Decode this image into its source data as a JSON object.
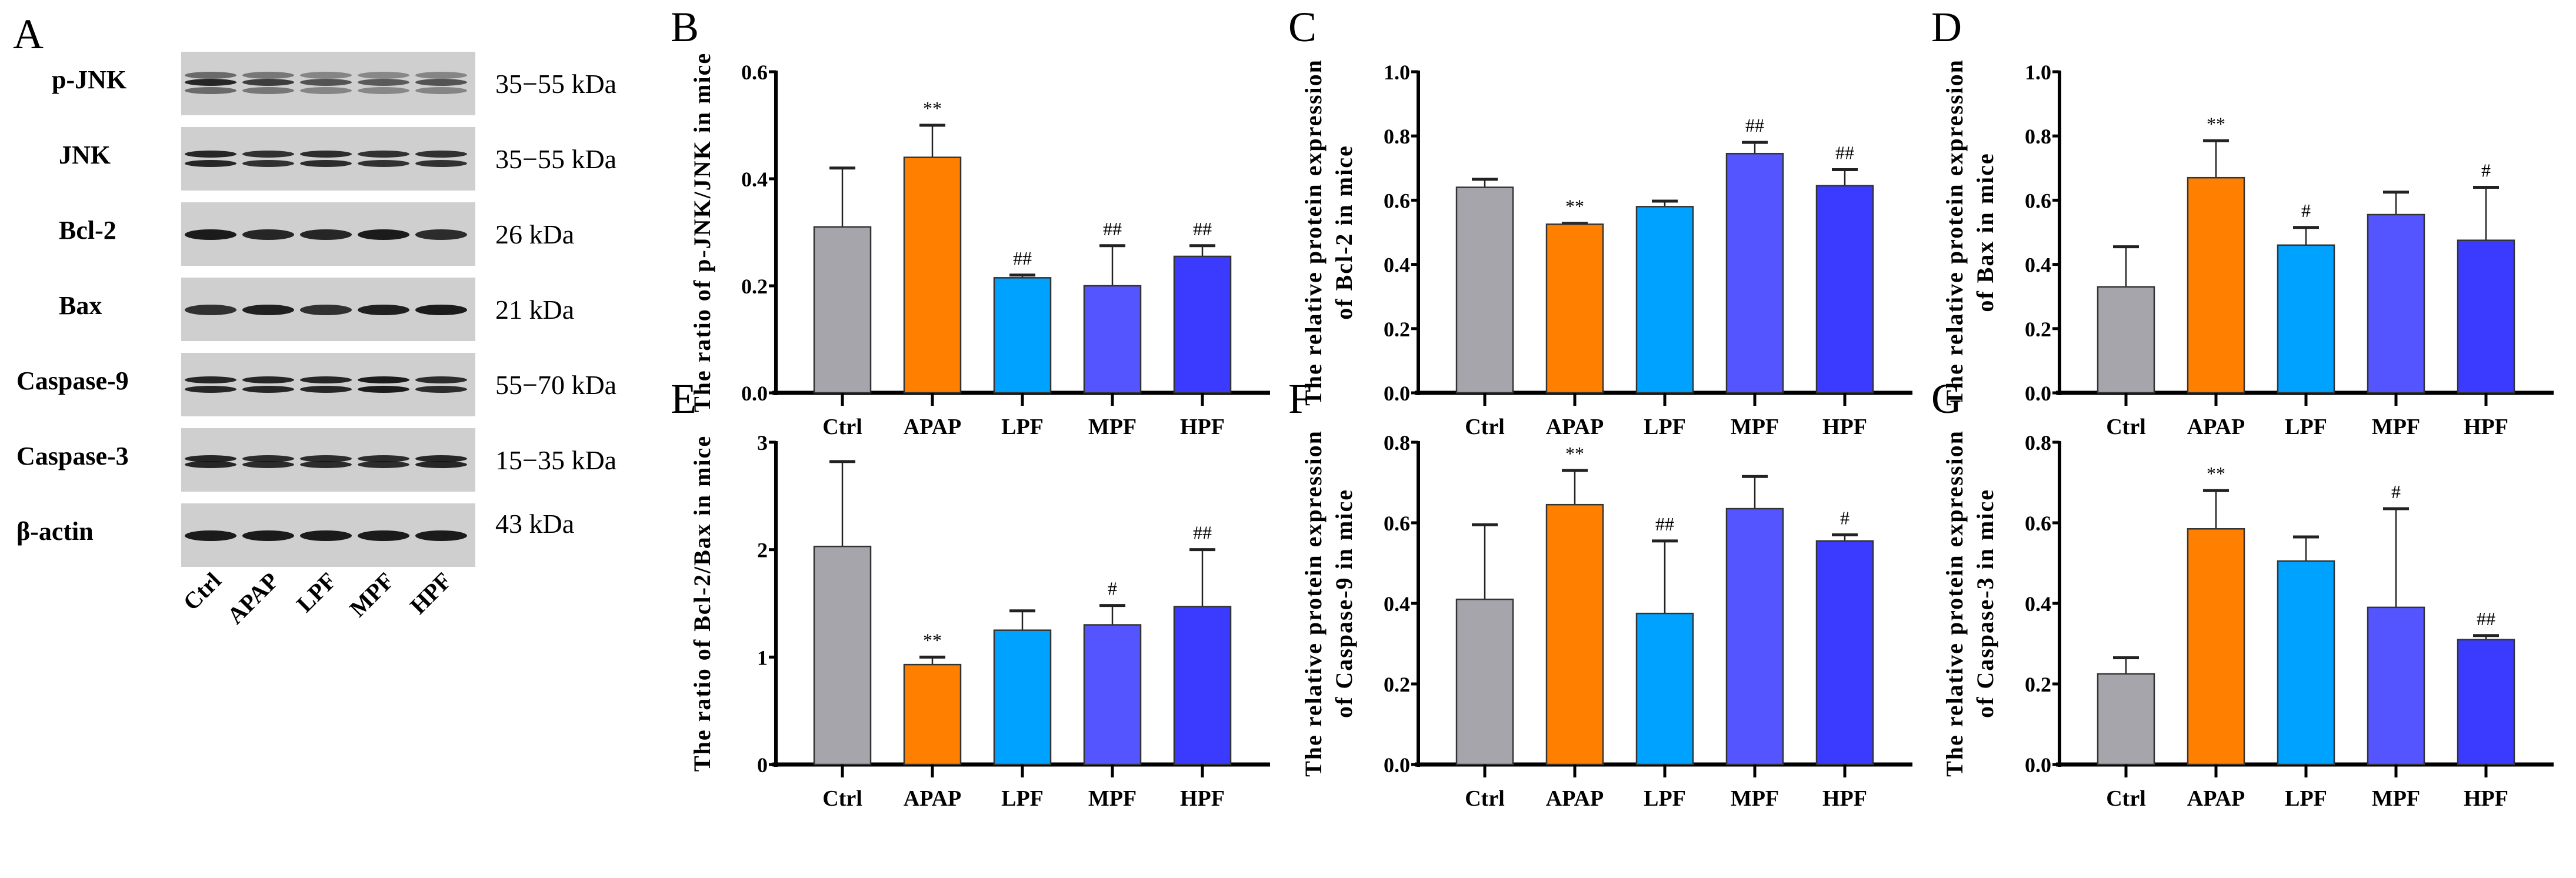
{
  "panel_a": {
    "letter": "A",
    "proteins": [
      {
        "name": "p-JNK",
        "size": "35−55 kDa"
      },
      {
        "name": "JNK",
        "size": "35−55 kDa"
      },
      {
        "name": "Bcl-2",
        "size": "26 kDa"
      },
      {
        "name": "Bax",
        "size": "21 kDa"
      },
      {
        "name": "Caspase-9",
        "size": "55−70 kDa"
      },
      {
        "name": "Caspase-3",
        "size": "15−35 kDa"
      },
      {
        "name": "β-actin",
        "size": "43 kDa"
      }
    ],
    "lanes": [
      "Ctrl",
      "APAP",
      "LPF",
      "MPF",
      "HPF"
    ]
  },
  "colors": [
    "#a6a5ab",
    "#ff7f00",
    "#00a2ff",
    "#5555ff",
    "#3b3bff"
  ],
  "chart_data": [
    {
      "letter": "B",
      "type": "bar",
      "categories": [
        "Ctrl",
        "APAP",
        "LPF",
        "MPF",
        "HPF"
      ],
      "values": [
        0.31,
        0.44,
        0.215,
        0.2,
        0.255
      ],
      "error_upper": [
        0.42,
        0.5,
        0.22,
        0.275,
        0.275
      ],
      "annotations": [
        "",
        "**",
        "##",
        "##",
        "##"
      ],
      "ylabel": [
        "The ratio of p-JNK/JNK in mice"
      ],
      "ylim": [
        0,
        0.6
      ],
      "yticks": [
        "0.0",
        "0.2",
        "0.4",
        "0.6"
      ]
    },
    {
      "letter": "C",
      "type": "bar",
      "categories": [
        "Ctrl",
        "APAP",
        "LPF",
        "MPF",
        "HPF"
      ],
      "values": [
        0.64,
        0.525,
        0.58,
        0.745,
        0.645
      ],
      "error_upper": [
        0.665,
        0.528,
        0.597,
        0.78,
        0.695
      ],
      "annotations": [
        "",
        "**",
        "",
        "##",
        "##"
      ],
      "ylabel": [
        "The relative protein expression",
        "of Bcl-2 in mice"
      ],
      "ylim": [
        0,
        1.0
      ],
      "yticks": [
        "0.0",
        "0.2",
        "0.4",
        "0.6",
        "0.8",
        "1.0"
      ]
    },
    {
      "letter": "D",
      "type": "bar",
      "categories": [
        "Ctrl",
        "APAP",
        "LPF",
        "MPF",
        "HPF"
      ],
      "values": [
        0.33,
        0.67,
        0.46,
        0.555,
        0.475
      ],
      "error_upper": [
        0.455,
        0.785,
        0.515,
        0.625,
        0.64
      ],
      "annotations": [
        "",
        "**",
        "#",
        "",
        "#"
      ],
      "ylabel": [
        "The relative protein expression",
        "of Bax in mice"
      ],
      "ylim": [
        0,
        1.0
      ],
      "yticks": [
        "0.0",
        "0.2",
        "0.4",
        "0.6",
        "0.8",
        "1.0"
      ]
    },
    {
      "letter": "E",
      "type": "bar",
      "categories": [
        "Ctrl",
        "APAP",
        "LPF",
        "MPF",
        "HPF"
      ],
      "values": [
        2.03,
        0.93,
        1.25,
        1.3,
        1.47
      ],
      "error_upper": [
        2.82,
        1.0,
        1.43,
        1.48,
        2.0
      ],
      "annotations": [
        "",
        "**",
        "",
        "#",
        "##"
      ],
      "ylabel": [
        "The ratio of Bcl-2/Bax in mice"
      ],
      "ylim": [
        0,
        3
      ],
      "yticks": [
        "0",
        "1",
        "2",
        "3"
      ]
    },
    {
      "letter": "F",
      "type": "bar",
      "categories": [
        "Ctrl",
        "APAP",
        "LPF",
        "MPF",
        "HPF"
      ],
      "values": [
        0.41,
        0.645,
        0.375,
        0.635,
        0.555
      ],
      "error_upper": [
        0.595,
        0.73,
        0.555,
        0.715,
        0.57
      ],
      "annotations": [
        "",
        "**",
        "##",
        "",
        "#"
      ],
      "ylabel": [
        "The relative protein expression",
        "of Caspase-9 in mice"
      ],
      "ylim": [
        0,
        0.8
      ],
      "yticks": [
        "0.0",
        "0.2",
        "0.4",
        "0.6",
        "0.8"
      ]
    },
    {
      "letter": "G",
      "type": "bar",
      "categories": [
        "Ctrl",
        "APAP",
        "LPF",
        "MPF",
        "HPF"
      ],
      "values": [
        0.225,
        0.585,
        0.505,
        0.39,
        0.31
      ],
      "error_upper": [
        0.265,
        0.68,
        0.565,
        0.635,
        0.32
      ],
      "annotations": [
        "",
        "**",
        "",
        "#",
        "##"
      ],
      "ylabel": [
        "The relative protein expression",
        "of Caspase-3 in mice"
      ],
      "ylim": [
        0,
        0.8
      ],
      "yticks": [
        "0.0",
        "0.2",
        "0.4",
        "0.6",
        "0.8"
      ]
    }
  ]
}
